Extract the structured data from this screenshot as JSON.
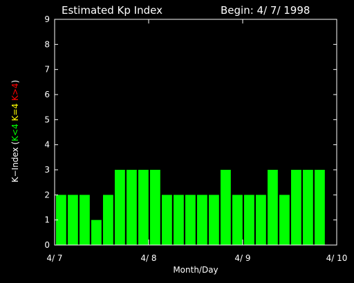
{
  "chart_data": {
    "type": "bar",
    "title": "Estimated Kp Index",
    "begin_label": "Begin: 4/ 7/ 1998",
    "xlabel": "Month/Day",
    "ylabel_prefix": "K−Index (",
    "ylabel_suffix": ")",
    "ylabel_parts": [
      {
        "text": "K<4",
        "color": "#00ff00"
      },
      {
        "text": "K=4",
        "color": "#ffff00"
      },
      {
        "text": "K>4",
        "color": "#ff0000"
      }
    ],
    "ylim": [
      0,
      9
    ],
    "yticks": [
      "0",
      "1",
      "2",
      "3",
      "4",
      "5",
      "6",
      "7",
      "8",
      "9"
    ],
    "xlim": [
      0,
      24
    ],
    "xticks": [
      {
        "label": "4/ 7",
        "at": 0
      },
      {
        "label": "4/ 8",
        "at": 8
      },
      {
        "label": "4/ 9",
        "at": 16
      },
      {
        "label": "4/ 10",
        "at": 24
      }
    ],
    "x_interval_hours": 3,
    "values": [
      2,
      2,
      2,
      1,
      2,
      3,
      3,
      3,
      3,
      2,
      2,
      2,
      2,
      2,
      3,
      2,
      2,
      2,
      3,
      2,
      3,
      3,
      3
    ],
    "bar_color": "#00ff00",
    "grid": false,
    "legend": "none"
  }
}
